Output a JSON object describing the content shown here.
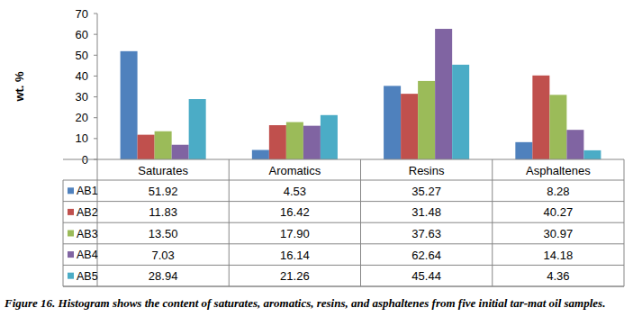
{
  "chart_data": {
    "type": "bar",
    "y_label": "wt. %",
    "caption": "Figure 16. Histogram shows the content of saturates, aromatics, resins, and asphaltenes from five initial tar-mat oil samples.",
    "categories": [
      "Saturates",
      "Aromatics",
      "Resins",
      "Asphaltenes"
    ],
    "series": [
      {
        "name": "AB1",
        "color": "#4f81bd",
        "values": [
          51.92,
          4.53,
          35.27,
          8.28
        ],
        "value_labels": [
          "51.92",
          "4.53",
          "35.27",
          "8.28"
        ]
      },
      {
        "name": "AB2",
        "color": "#c0504d",
        "values": [
          11.83,
          16.42,
          31.48,
          40.27
        ],
        "value_labels": [
          "11.83",
          "16.42",
          "31.48",
          "40.27"
        ]
      },
      {
        "name": "AB3",
        "color": "#9bbb59",
        "values": [
          13.5,
          17.9,
          37.63,
          30.97
        ],
        "value_labels": [
          "13.50",
          "17.90",
          "37.63",
          "30.97"
        ]
      },
      {
        "name": "AB4",
        "color": "#8064a2",
        "values": [
          7.03,
          16.14,
          62.64,
          14.18
        ],
        "value_labels": [
          "7.03",
          "16.14",
          "62.64",
          "14.18"
        ]
      },
      {
        "name": "AB5",
        "color": "#4bacc6",
        "values": [
          28.94,
          21.26,
          45.44,
          4.36
        ],
        "value_labels": [
          "28.94",
          "21.26",
          "45.44",
          "4.36"
        ]
      }
    ],
    "ylim": [
      0,
      70
    ],
    "yticks": [
      0,
      10,
      20,
      30,
      40,
      50,
      60,
      70
    ],
    "grid": false
  }
}
